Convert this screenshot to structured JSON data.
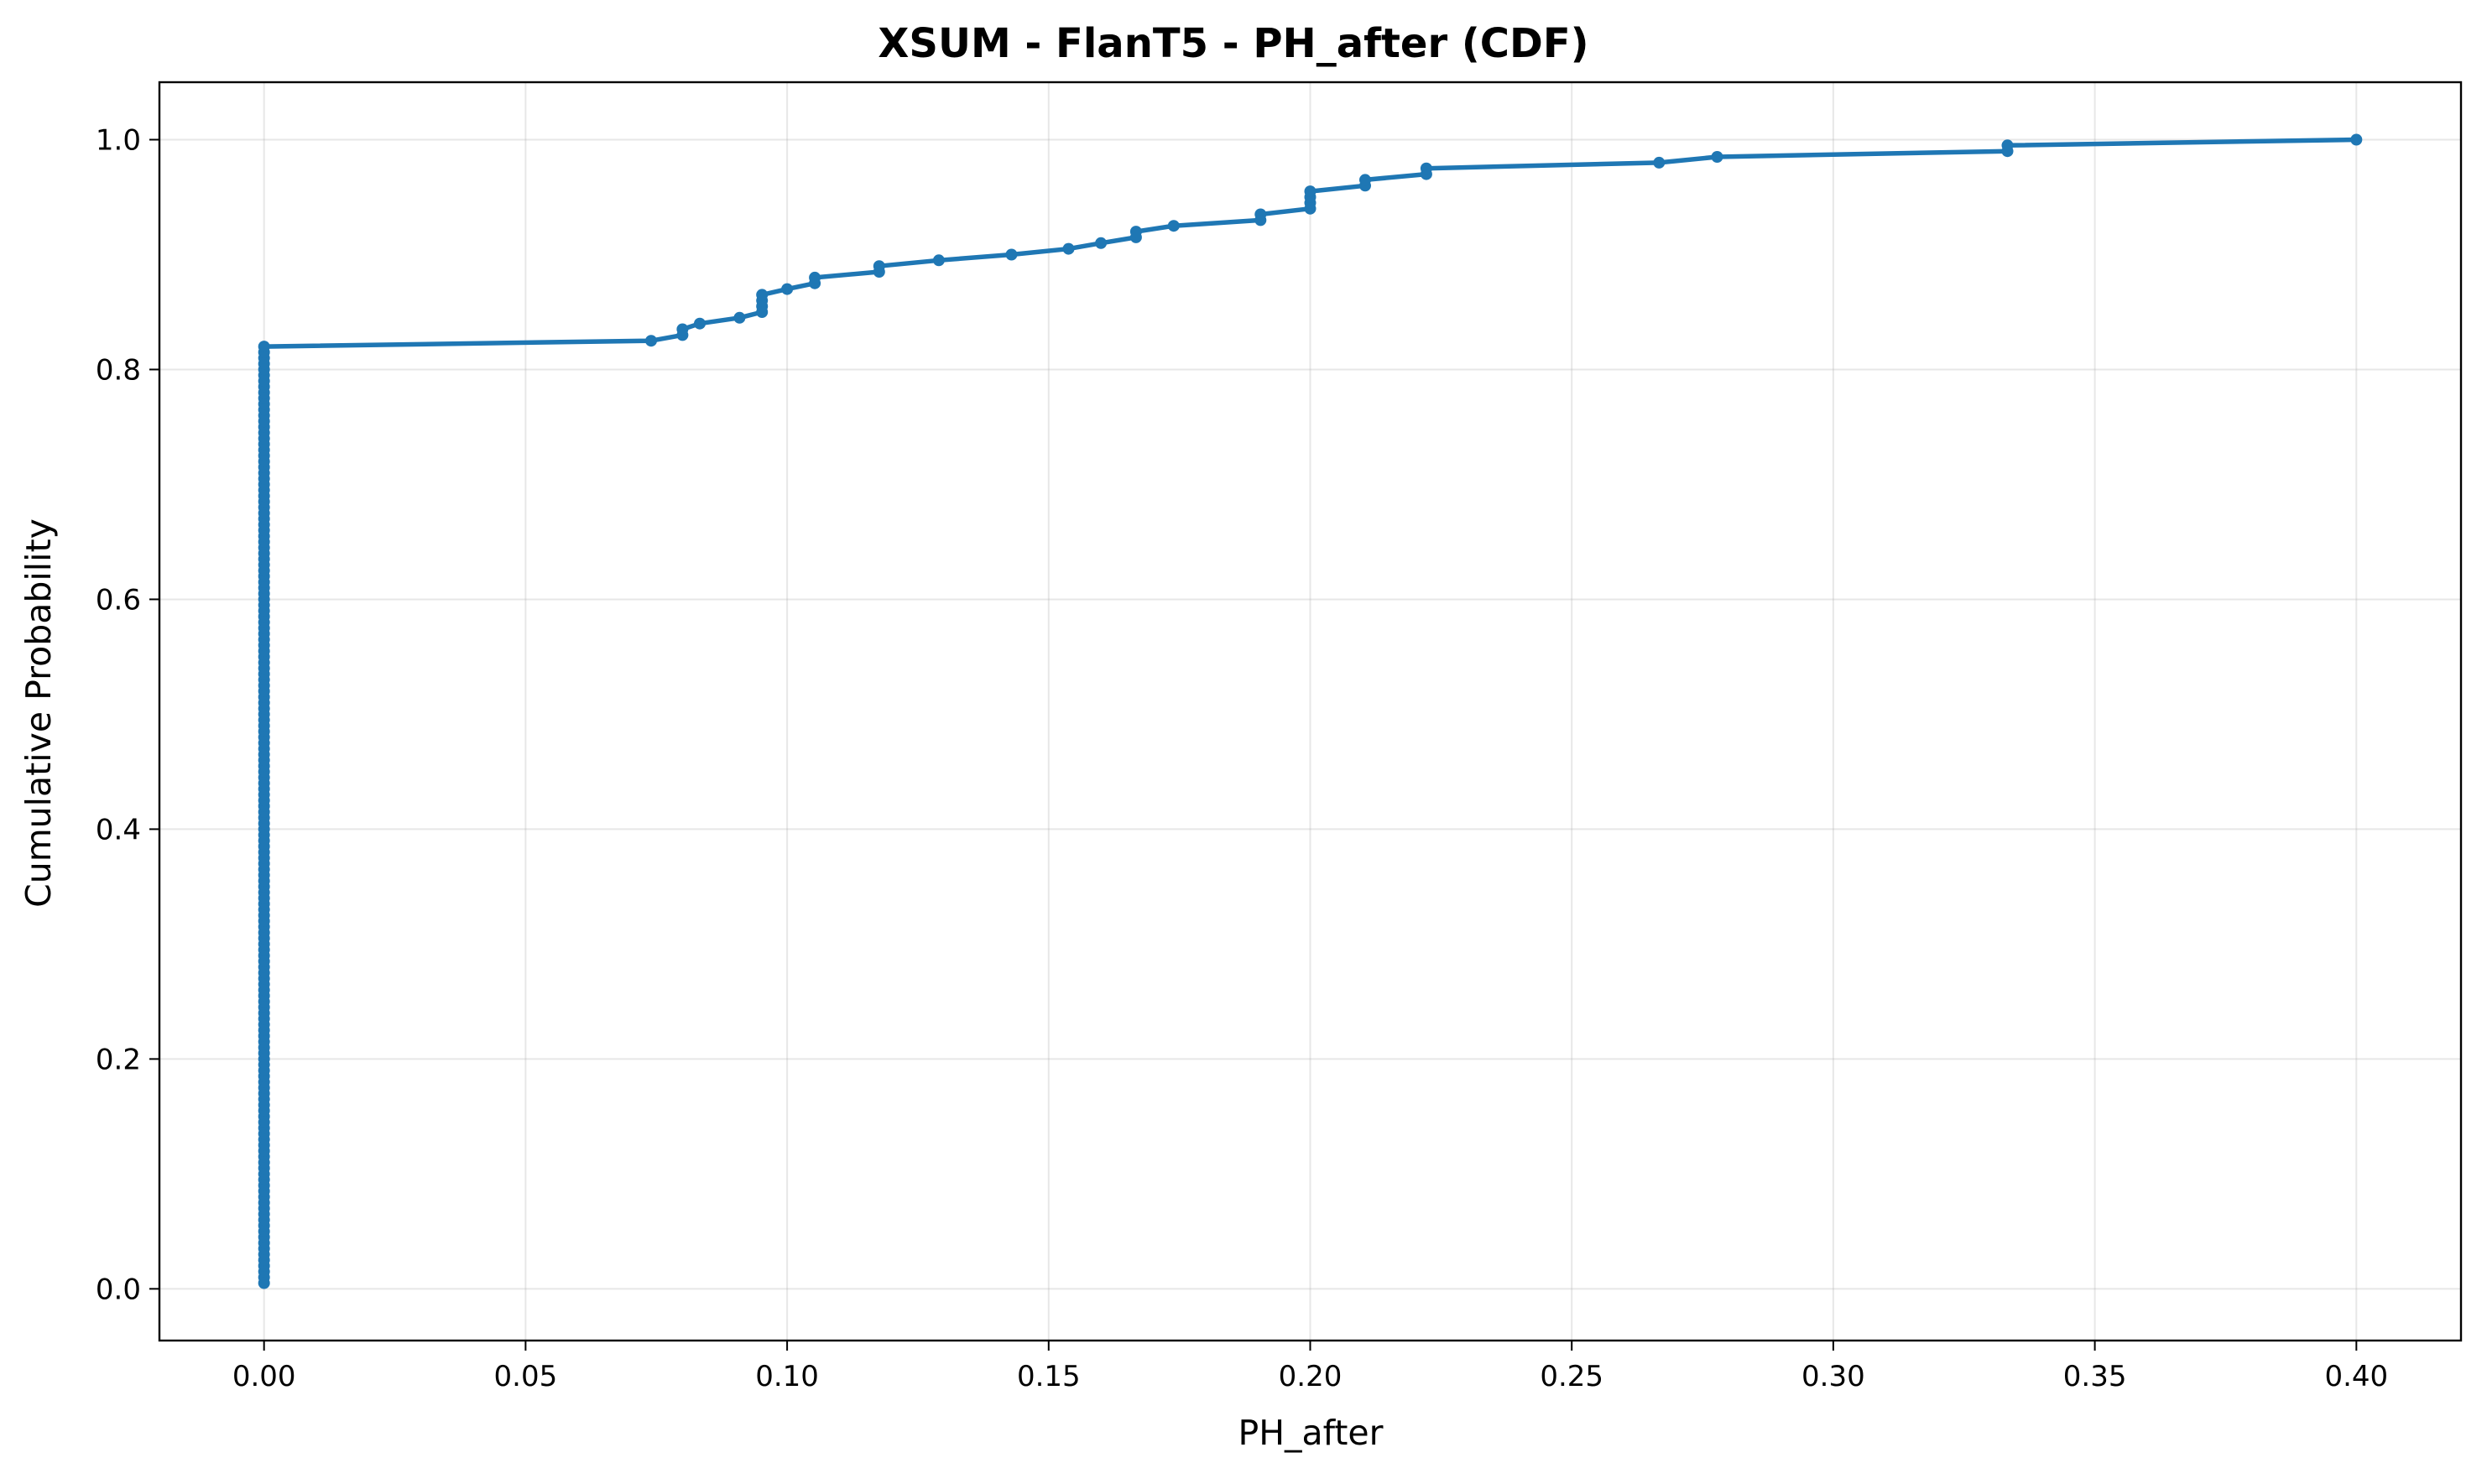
{
  "chart_data": {
    "type": "line",
    "title": "XSUM - FlanT5 - PH_after (CDF)",
    "xlabel": "PH_after",
    "ylabel": "Cumulative Probability",
    "xlim": [
      -0.02,
      0.42
    ],
    "ylim": [
      -0.045,
      1.05
    ],
    "xticks": [
      0.0,
      0.05,
      0.1,
      0.15,
      0.2,
      0.25,
      0.3,
      0.35,
      0.4
    ],
    "xtick_labels": [
      "0.00",
      "0.05",
      "0.10",
      "0.15",
      "0.20",
      "0.25",
      "0.30",
      "0.35",
      "0.40"
    ],
    "yticks": [
      0.0,
      0.2,
      0.4,
      0.6,
      0.8,
      1.0
    ],
    "ytick_labels": [
      "0.0",
      "0.2",
      "0.4",
      "0.6",
      "0.8",
      "1.0"
    ],
    "grid": true,
    "legend": "none",
    "series": [
      {
        "color": "#1f77b4",
        "zero_run": {
          "x": 0.0,
          "y_from": 0.005,
          "y_to": 0.82,
          "step": 0.005
        },
        "points": [
          [
            0.074,
            0.825
          ],
          [
            0.08,
            0.83
          ],
          [
            0.08,
            0.835
          ],
          [
            0.0833,
            0.84
          ],
          [
            0.0909,
            0.845
          ],
          [
            0.0952,
            0.85
          ],
          [
            0.0952,
            0.855
          ],
          [
            0.0952,
            0.86
          ],
          [
            0.0952,
            0.865
          ],
          [
            0.1,
            0.87
          ],
          [
            0.1053,
            0.875
          ],
          [
            0.1053,
            0.88
          ],
          [
            0.1176,
            0.885
          ],
          [
            0.1176,
            0.89
          ],
          [
            0.129,
            0.895
          ],
          [
            0.1429,
            0.9
          ],
          [
            0.1538,
            0.905
          ],
          [
            0.16,
            0.91
          ],
          [
            0.1667,
            0.915
          ],
          [
            0.1667,
            0.92
          ],
          [
            0.1739,
            0.925
          ],
          [
            0.1905,
            0.93
          ],
          [
            0.1905,
            0.935
          ],
          [
            0.2,
            0.94
          ],
          [
            0.2,
            0.945
          ],
          [
            0.2,
            0.95
          ],
          [
            0.2,
            0.955
          ],
          [
            0.2105,
            0.96
          ],
          [
            0.2105,
            0.965
          ],
          [
            0.2222,
            0.97
          ],
          [
            0.2222,
            0.975
          ],
          [
            0.2667,
            0.98
          ],
          [
            0.2778,
            0.985
          ],
          [
            0.3333,
            0.99
          ],
          [
            0.3333,
            0.995
          ],
          [
            0.4,
            1.0
          ]
        ]
      }
    ]
  }
}
